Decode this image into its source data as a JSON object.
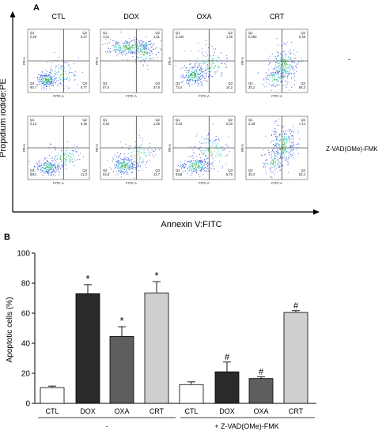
{
  "panel_a": {
    "label": "A",
    "columns": [
      "CTL",
      "DOX",
      "OXA",
      "CRT"
    ],
    "row_labels": [
      "-",
      "Z-VAD(OMe)-FMK"
    ],
    "ylabel": "Propidium iodide:PE",
    "xlabel": "Annexin V:FITC",
    "plot_ylabel": "PE-A",
    "plot_xlabel": "FITC-A",
    "quadrant_names": [
      "Q1",
      "Q2",
      "Q3",
      "Q4"
    ],
    "rows": [
      [
        {
          "q1": "0,29",
          "q2": "0,27",
          "q3": "8,77",
          "q4": "90,7"
        },
        {
          "q1": "1,01",
          "q2": "1,61",
          "q3": "37,9",
          "q4": "57,4"
        },
        {
          "q1": "0,100",
          "q2": "1,49",
          "q3": "16,2",
          "q4": "73,4"
        },
        {
          "q1": "0,060",
          "q2": "0,48",
          "q3": "68,3",
          "q4": "35,2"
        }
      ],
      [
        {
          "q1": "0,13",
          "q2": "0,46",
          "q3": "11,3",
          "q4": "88,1"
        },
        {
          "q1": "0,50",
          "q2": "1,05",
          "q3": "13,7",
          "q4": "84,6"
        },
        {
          "q1": "0,34",
          "q2": "0,20",
          "q3": "5,78",
          "q4": "93,8"
        },
        {
          "q1": "2,39",
          "q2": "7,14",
          "q3": "52,4",
          "q4": "38,3"
        }
      ]
    ]
  },
  "panel_b": {
    "label": "B",
    "chart_data": {
      "type": "bar",
      "ylabel": "Apoptotic cells (%)",
      "ylim": [
        0,
        100
      ],
      "yticks": [
        0,
        20,
        40,
        60,
        80,
        100
      ],
      "categories": [
        "CTL",
        "DOX",
        "OXA",
        "CRT",
        "CTL",
        "DOX",
        "OXA",
        "CRT"
      ],
      "values": [
        10.5,
        73,
        44.5,
        73.5,
        12.5,
        21,
        16.5,
        60.5
      ],
      "errors": [
        1,
        6,
        6.5,
        7.5,
        1.8,
        6.5,
        1.2,
        1.2
      ],
      "annotations": [
        "",
        "*",
        "*",
        "*",
        "",
        "#",
        "#",
        "#"
      ],
      "groups": [
        {
          "label": "-",
          "indices": [
            0,
            1,
            2,
            3
          ]
        },
        {
          "label": "+ Z-VAD(OMe)-FMK",
          "indices": [
            4,
            5,
            6,
            7
          ]
        }
      ],
      "bar_colors": [
        "#ffffff",
        "#2a2a2a",
        "#5e5e5e",
        "#cfcfcf",
        "#ffffff",
        "#2a2a2a",
        "#5e5e5e",
        "#cfcfcf"
      ]
    }
  }
}
